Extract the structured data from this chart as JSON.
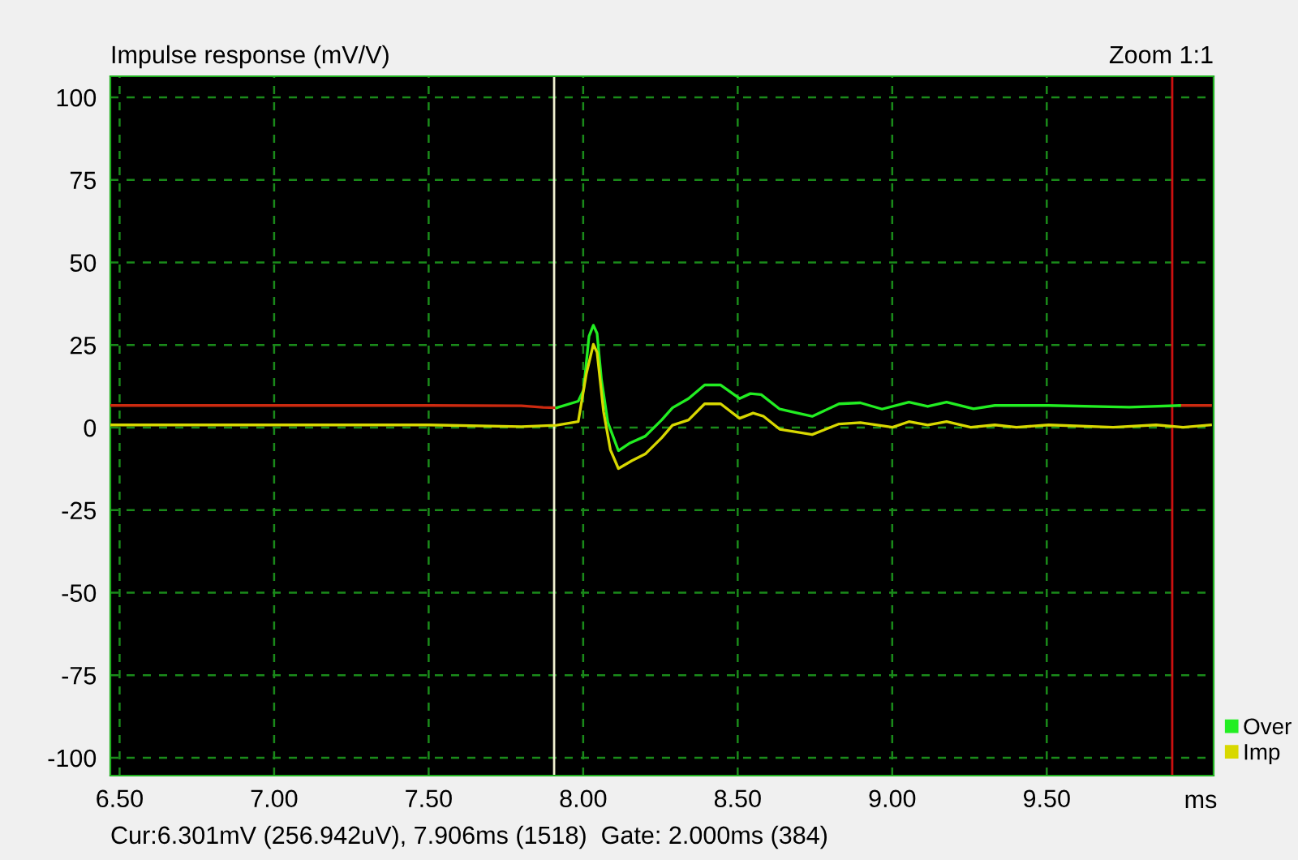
{
  "chart_data": {
    "type": "line",
    "title": "Impulse response (mV/V)",
    "xlabel": "ms",
    "annotations": [
      "Zoom 1:1",
      "Cur:6.301mV (256.942uV), 7.906ms (1518)  Gate: 2.000ms (384)"
    ],
    "xlim": [
      6.47,
      10.04
    ],
    "ylim": [
      -105.4,
      106.4
    ],
    "xticks": [
      {
        "value": 6.5,
        "label": "6.50"
      },
      {
        "value": 7.0,
        "label": "7.00"
      },
      {
        "value": 7.5,
        "label": "7.50"
      },
      {
        "value": 8.0,
        "label": "8.00"
      },
      {
        "value": 8.5,
        "label": "8.50"
      },
      {
        "value": 9.0,
        "label": "9.00"
      },
      {
        "value": 9.5,
        "label": "9.50"
      }
    ],
    "yticks": [
      -100,
      -75,
      -50,
      -25,
      0,
      25,
      50,
      75,
      100
    ],
    "grid": true,
    "legend": "bottom right",
    "line_style": "solid",
    "marker": "none",
    "ref_lines": [
      {
        "axis": "x",
        "value": 7.906,
        "color": "#f0f0d0"
      },
      {
        "axis": "x",
        "value": 9.906,
        "color": "#cc1010"
      }
    ],
    "series": [
      {
        "color": "#cc2a10",
        "x": [
          6.47,
          7.0,
          7.5,
          7.8,
          7.87,
          7.914,
          7.92,
          9.92,
          9.93,
          10.03
        ],
        "values": [
          6.7,
          6.7,
          6.7,
          6.6,
          6.1,
          6.0,
          null,
          null,
          6.7,
          6.7
        ]
      },
      {
        "name": "Over",
        "color": "#22ee22",
        "x": [
          7.914,
          7.984,
          8.001,
          8.019,
          8.033,
          8.045,
          8.059,
          8.08,
          8.114,
          8.149,
          8.201,
          8.254,
          8.289,
          8.341,
          8.393,
          8.445,
          8.506,
          8.541,
          8.576,
          8.636,
          8.741,
          8.828,
          8.897,
          8.967,
          9.054,
          9.115,
          9.176,
          9.263,
          9.332,
          9.506,
          9.767,
          9.93
        ],
        "values": [
          6.0,
          8.0,
          11.3,
          27.7,
          31.0,
          28.5,
          14.6,
          1.5,
          -7.0,
          -4.8,
          -2.6,
          2.3,
          6.0,
          8.8,
          12.9,
          12.9,
          8.8,
          10.3,
          10.0,
          5.6,
          3.4,
          7.2,
          7.5,
          5.6,
          7.7,
          6.4,
          7.7,
          5.7,
          6.7,
          6.7,
          6.2,
          6.7
        ]
      },
      {
        "name": "Imp",
        "color": "#d8d800",
        "x": [
          6.47,
          7.0,
          7.5,
          7.8,
          7.914,
          7.984,
          8.01,
          8.033,
          8.045,
          8.066,
          8.088,
          8.114,
          8.158,
          8.201,
          8.254,
          8.289,
          8.341,
          8.393,
          8.445,
          8.506,
          8.55,
          8.584,
          8.636,
          8.741,
          8.828,
          8.897,
          9.001,
          9.054,
          9.115,
          9.176,
          9.254,
          9.332,
          9.402,
          9.506,
          9.715,
          9.854,
          9.941,
          10.03
        ],
        "values": [
          0.8,
          0.8,
          0.8,
          0.3,
          0.7,
          1.8,
          16.2,
          25.2,
          22.8,
          4.8,
          -6.7,
          -12.4,
          -10.0,
          -8.0,
          -3.1,
          0.7,
          2.3,
          7.2,
          7.2,
          2.8,
          4.4,
          3.4,
          -0.5,
          -2.1,
          1.1,
          1.5,
          0.1,
          1.8,
          0.8,
          1.8,
          0.1,
          0.8,
          0.1,
          0.8,
          0.1,
          0.8,
          0.1,
          0.8
        ]
      }
    ]
  }
}
